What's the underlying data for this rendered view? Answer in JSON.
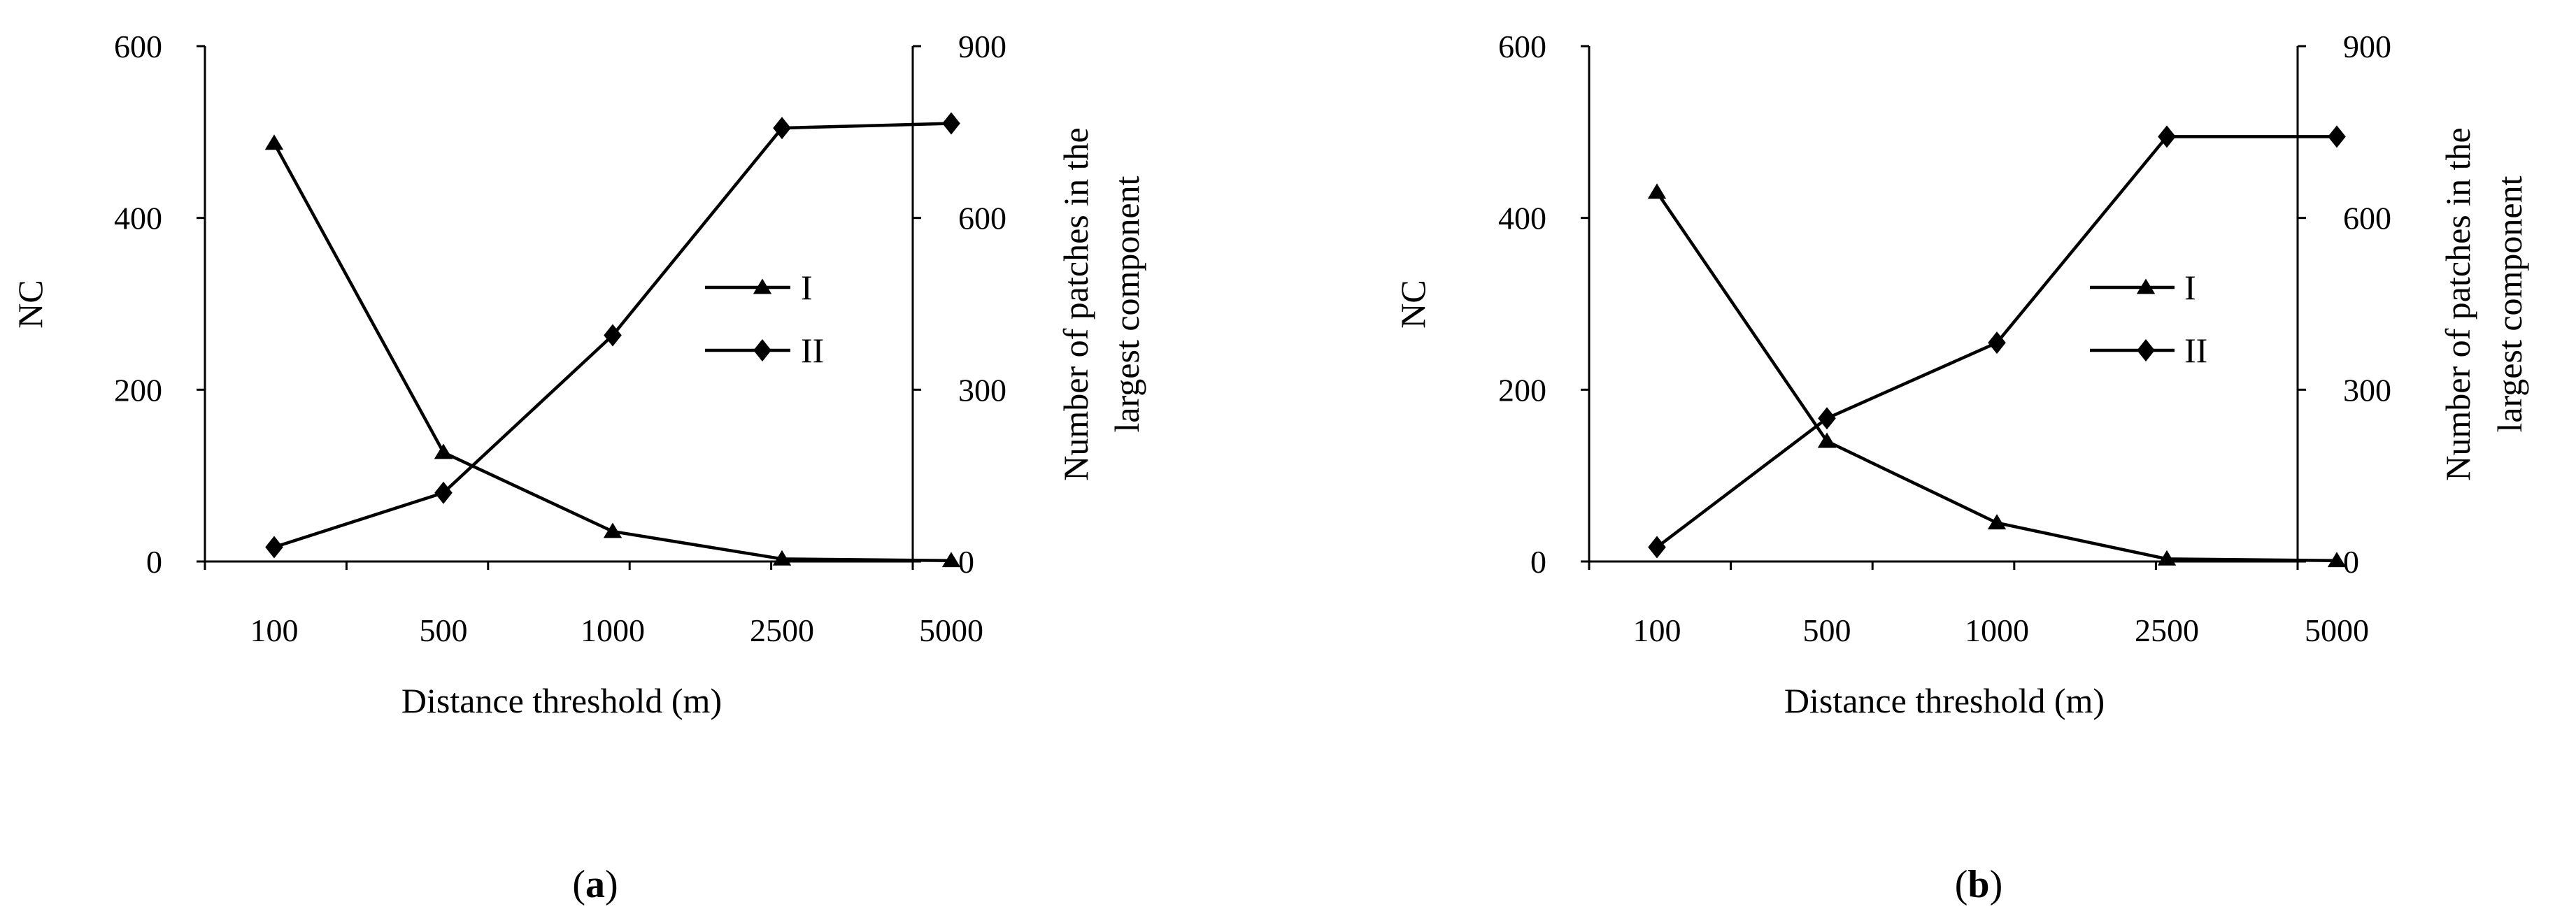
{
  "chart_data": [
    {
      "panel": "a",
      "caption_letter": "a",
      "type": "line",
      "categories": [
        "100",
        "500",
        "1000",
        "2500",
        "5000"
      ],
      "xlabel": "Distance threshold (m)",
      "ylabel_left": "NC",
      "ylabel_right_line1": "Number of patches in the",
      "ylabel_right_line2": "largest component",
      "ylim_left": [
        0,
        600
      ],
      "yticks_left": [
        "0",
        "200",
        "400",
        "600"
      ],
      "ylim_right": [
        0,
        900
      ],
      "yticks_right": [
        "0",
        "300",
        "600",
        "900"
      ],
      "grid": false,
      "legend_position": "center-right",
      "series": [
        {
          "name": "I",
          "axis": "left",
          "marker": "triangle",
          "values": [
            487,
            127,
            35,
            3,
            1
          ]
        },
        {
          "name": "II",
          "axis": "right",
          "marker": "diamond",
          "values": [
            25,
            120,
            395,
            757,
            765
          ]
        }
      ]
    },
    {
      "panel": "b",
      "caption_letter": "b",
      "type": "line",
      "categories": [
        "100",
        "500",
        "1000",
        "2500",
        "5000"
      ],
      "xlabel": "Distance threshold (m)",
      "ylabel_left": "NC",
      "ylabel_right_line1": "Number of patches in the",
      "ylabel_right_line2": "largest component",
      "ylim_left": [
        0,
        600
      ],
      "yticks_left": [
        "0",
        "200",
        "400",
        "600"
      ],
      "ylim_right": [
        0,
        900
      ],
      "yticks_right": [
        "0",
        "300",
        "600",
        "900"
      ],
      "grid": false,
      "legend_position": "center-right",
      "series": [
        {
          "name": "I",
          "axis": "left",
          "marker": "triangle",
          "values": [
            430,
            140,
            45,
            3,
            1
          ]
        },
        {
          "name": "II",
          "axis": "right",
          "marker": "diamond",
          "values": [
            25,
            250,
            382,
            742,
            742
          ]
        }
      ]
    }
  ],
  "style": {
    "line_color": "#000000",
    "background": "#ffffff"
  }
}
